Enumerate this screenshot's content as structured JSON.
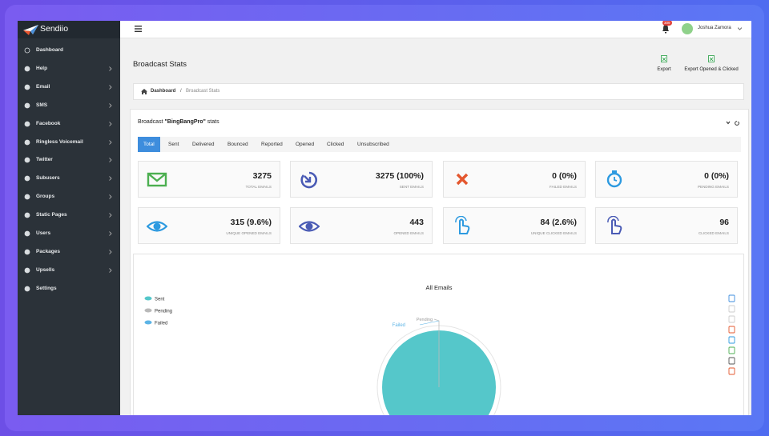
{
  "brand": "Sendiio",
  "sidebar": [
    "Dashboard",
    "Help",
    "Email",
    "SMS",
    "Facebook",
    "Ringless Voicemail",
    "Twitter",
    "Subusers",
    "Groups",
    "Static Pages",
    "Users",
    "Packages",
    "Upsells",
    "Settings"
  ],
  "topbar": {
    "notifications": "309",
    "user": "Joshua Zamora"
  },
  "header": {
    "title": "Broadcast Stats",
    "actions": [
      "Export",
      "Export Opened & Clicked"
    ]
  },
  "breadcrumb": [
    "Dashboard",
    "Broadcast Stats"
  ],
  "panel": {
    "title_prefix": "Broadcast",
    "name": "\"BingBangPro\"",
    "title_suffix": "stats"
  },
  "tabs": [
    "Total",
    "Sent",
    "Delivered",
    "Bounced",
    "Reported",
    "Opened",
    "Clicked",
    "Unsubscribed"
  ],
  "stats": [
    {
      "value": "3275",
      "label": "TOTAL EMAILS"
    },
    {
      "value": "3275 (100%)",
      "label": "SENT EMAILS"
    },
    {
      "value": "0 (0%)",
      "label": "FAILED EMAILS"
    },
    {
      "value": "0 (0%)",
      "label": "PENDING EMAILS"
    },
    {
      "value": "315 (9.6%)",
      "label": "UNIQUE OPENED EMAILS"
    },
    {
      "value": "443",
      "label": "OPENED EMAILS"
    },
    {
      "value": "84 (2.6%)",
      "label": "UNIQUE CLICKED EMAILS"
    },
    {
      "value": "96",
      "label": "CLICKED EMAILS"
    }
  ],
  "chart_data": {
    "type": "pie",
    "title": "All Emails",
    "categories": [
      "Sent",
      "Pending",
      "Failed"
    ],
    "values": [
      3275,
      0,
      0
    ],
    "colors": [
      "#55c7ca",
      "#b9b9b9",
      "#5cb4e6"
    ],
    "legend": "top-left"
  }
}
